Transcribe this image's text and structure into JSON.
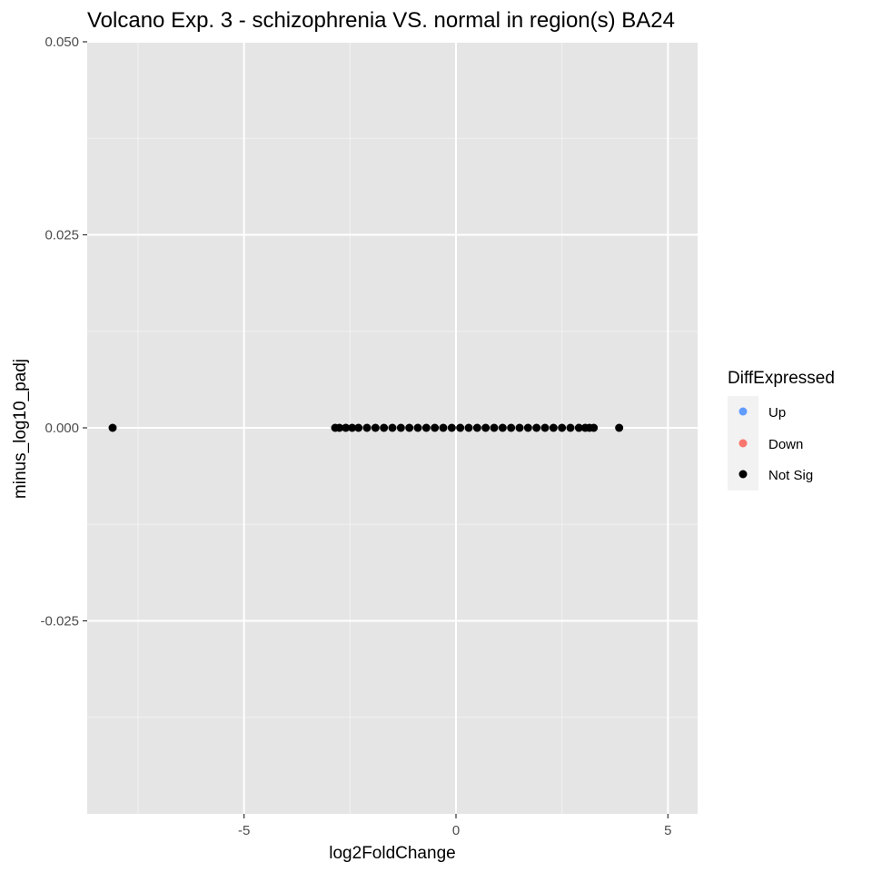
{
  "chart_data": {
    "type": "scatter",
    "title": "Volcano Exp. 3 - schizophrenia VS. normal in region(s) BA24",
    "xlabel": "log2FoldChange",
    "ylabel": "minus_log10_padj",
    "xlim": [
      -8.7,
      5.7
    ],
    "ylim": [
      -0.05,
      0.05
    ],
    "x_ticks": [
      -5,
      0,
      5
    ],
    "x_tick_labels": [
      "-5",
      "0",
      "5"
    ],
    "y_ticks": [
      -0.025,
      0.0,
      0.025,
      0.05
    ],
    "y_tick_labels": [
      "-0.025",
      "0.000",
      "0.025",
      "0.050"
    ],
    "grid": true,
    "legend": {
      "title": "DiffExpressed",
      "position": "right",
      "entries": [
        {
          "label": "Up",
          "color": "#619CFF"
        },
        {
          "label": "Down",
          "color": "#F8766D"
        },
        {
          "label": "Not Sig",
          "color": "#000000"
        }
      ]
    },
    "series": [
      {
        "name": "Not Sig",
        "color": "#000000",
        "points": [
          [
            -8.1,
            0.0
          ],
          [
            -2.85,
            0.0
          ],
          [
            -2.75,
            0.0
          ],
          [
            -2.6,
            0.0
          ],
          [
            -2.45,
            0.0
          ],
          [
            -2.3,
            0.0
          ],
          [
            -2.1,
            0.0
          ],
          [
            -1.9,
            0.0
          ],
          [
            -1.7,
            0.0
          ],
          [
            -1.5,
            0.0
          ],
          [
            -1.3,
            0.0
          ],
          [
            -1.1,
            0.0
          ],
          [
            -0.9,
            0.0
          ],
          [
            -0.7,
            0.0
          ],
          [
            -0.5,
            0.0
          ],
          [
            -0.3,
            0.0
          ],
          [
            -0.1,
            0.0
          ],
          [
            0.1,
            0.0
          ],
          [
            0.3,
            0.0
          ],
          [
            0.5,
            0.0
          ],
          [
            0.7,
            0.0
          ],
          [
            0.9,
            0.0
          ],
          [
            1.1,
            0.0
          ],
          [
            1.3,
            0.0
          ],
          [
            1.5,
            0.0
          ],
          [
            1.7,
            0.0
          ],
          [
            1.9,
            0.0
          ],
          [
            2.1,
            0.0
          ],
          [
            2.3,
            0.0
          ],
          [
            2.5,
            0.0
          ],
          [
            2.7,
            0.0
          ],
          [
            2.9,
            0.0
          ],
          [
            3.05,
            0.0
          ],
          [
            3.15,
            0.0
          ],
          [
            3.25,
            0.0
          ],
          [
            3.85,
            0.0
          ]
        ]
      },
      {
        "name": "Up",
        "color": "#619CFF",
        "points": []
      },
      {
        "name": "Down",
        "color": "#F8766D",
        "points": []
      }
    ]
  }
}
